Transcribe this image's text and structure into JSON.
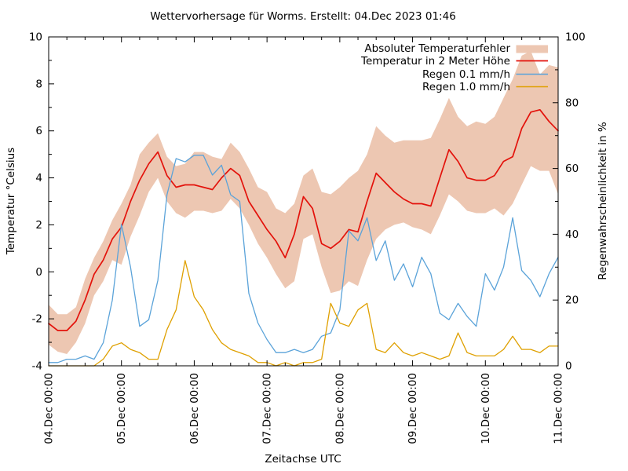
{
  "title": "Wettervorhersage für Worms. Erstellt: 04.Dec 2023 01:46",
  "colors": {
    "background": "#ffffff",
    "axis": "#000000",
    "error_band": "#edc7b2",
    "temperature": "#e3120b",
    "rain_01": "#5ba3d9",
    "rain_10": "#dfa000"
  },
  "axes": {
    "x": {
      "label": "Zeitachse UTC",
      "ticks": [
        "04.Dec 00:00",
        "05.Dec 00:00",
        "06.Dec 00:00",
        "07.Dec 00:00",
        "08.Dec 00:00",
        "09.Dec 00:00",
        "10.Dec 00:00",
        "11.Dec 00:00"
      ],
      "minor_ticks_hours": 6
    },
    "y_left": {
      "label": "Temperatur °Celsius",
      "min": -4,
      "max": 10,
      "ticks": [
        10,
        8,
        6,
        4,
        2,
        0,
        -2,
        -4
      ],
      "minor_step": 1
    },
    "y_right": {
      "label": "Regenwahrscheinlichkeit in %",
      "min": 0,
      "max": 100,
      "ticks": [
        100,
        80,
        60,
        40,
        20,
        0
      ],
      "minor_step": 10
    }
  },
  "legend": {
    "items": [
      {
        "label": "Absoluter Temperaturfehler",
        "swatch": "band",
        "color_key": "error_band"
      },
      {
        "label": "Temperatur in 2 Meter Höhe",
        "swatch": "line",
        "color_key": "temperature"
      },
      {
        "label": "Regen 0.1 mm/h",
        "swatch": "line",
        "color_key": "rain_01"
      },
      {
        "label": "Regen 1.0 mm/h",
        "swatch": "line",
        "color_key": "rain_10"
      }
    ]
  },
  "chart_data": {
    "type": "line",
    "title": "Wettervorhersage für Worms. Erstellt: 04.Dec 2023 01:46",
    "xlabel": "Zeitachse UTC",
    "ylabel_left": "Temperatur °Celsius",
    "ylabel_right": "Regenwahrscheinlichkeit in %",
    "x_unit": "hours since 04.Dec 2023 00:00 UTC",
    "x_range_hours": [
      0,
      168
    ],
    "ylim_left": [
      -4,
      10
    ],
    "ylim_right": [
      0,
      100
    ],
    "grid": false,
    "legend_position": "top-right",
    "x_hours": [
      0,
      3,
      6,
      9,
      12,
      15,
      18,
      21,
      24,
      27,
      30,
      33,
      36,
      39,
      42,
      45,
      48,
      51,
      54,
      57,
      60,
      63,
      66,
      69,
      72,
      75,
      78,
      81,
      84,
      87,
      90,
      93,
      96,
      99,
      102,
      105,
      108,
      111,
      114,
      117,
      120,
      123,
      126,
      129,
      132,
      135,
      138,
      141,
      144,
      147,
      150,
      153,
      156,
      159,
      162,
      165,
      168
    ],
    "series": [
      {
        "name": "Absoluter Temperaturfehler",
        "type": "band",
        "axis": "left",
        "upper": [
          -1.4,
          -1.8,
          -1.8,
          -1.5,
          -0.3,
          0.6,
          1.3,
          2.2,
          2.9,
          3.7,
          5.0,
          5.5,
          5.9,
          4.9,
          4.5,
          4.6,
          5.1,
          5.1,
          4.9,
          4.8,
          5.5,
          5.1,
          4.4,
          3.6,
          3.4,
          2.7,
          2.5,
          2.9,
          4.1,
          4.4,
          3.4,
          3.3,
          3.6,
          4.0,
          4.3,
          5.0,
          6.2,
          5.8,
          5.5,
          5.6,
          5.6,
          5.6,
          5.7,
          6.5,
          7.4,
          6.6,
          6.2,
          6.4,
          6.3,
          6.6,
          7.4,
          8.2,
          9.2,
          9.4,
          8.4,
          8.8,
          8.7
        ],
        "lower": [
          -3.1,
          -3.4,
          -3.5,
          -3.0,
          -2.2,
          -1.0,
          -0.4,
          0.5,
          0.3,
          1.5,
          2.4,
          3.4,
          4.0,
          3.0,
          2.5,
          2.3,
          2.6,
          2.6,
          2.5,
          2.6,
          3.1,
          2.7,
          2.0,
          1.2,
          0.6,
          -0.1,
          -0.7,
          -0.4,
          1.4,
          1.6,
          0.2,
          -0.9,
          -0.8,
          -0.4,
          -0.6,
          0.5,
          1.4,
          1.8,
          2.0,
          2.1,
          1.9,
          1.8,
          1.6,
          2.4,
          3.3,
          3.0,
          2.6,
          2.5,
          2.5,
          2.7,
          2.4,
          2.9,
          3.7,
          4.5,
          4.3,
          4.3,
          3.3
        ]
      },
      {
        "name": "Temperatur in 2 Meter Höhe",
        "type": "line",
        "axis": "left",
        "values": [
          -2.2,
          -2.5,
          -2.5,
          -2.1,
          -1.2,
          -0.1,
          0.5,
          1.4,
          1.9,
          3.0,
          3.9,
          4.6,
          5.1,
          4.1,
          3.6,
          3.7,
          3.7,
          3.6,
          3.5,
          4.0,
          4.4,
          4.1,
          3.0,
          2.4,
          1.8,
          1.3,
          0.6,
          1.6,
          3.2,
          2.7,
          1.2,
          1.0,
          1.3,
          1.8,
          1.7,
          3.0,
          4.2,
          3.8,
          3.4,
          3.1,
          2.9,
          2.9,
          2.8,
          4.0,
          5.2,
          4.7,
          4.0,
          3.9,
          3.9,
          4.1,
          4.7,
          4.9,
          6.1,
          6.8,
          6.9,
          6.4,
          6.0
        ]
      },
      {
        "name": "Regen 0.1 mm/h",
        "type": "line",
        "axis": "right",
        "values": [
          1,
          1,
          2,
          2,
          3,
          2,
          7,
          20,
          43,
          30,
          12,
          14,
          26,
          52,
          63,
          62,
          64,
          64,
          58,
          61,
          52,
          50,
          22,
          13,
          8,
          4,
          4,
          5,
          4,
          5,
          9,
          10,
          17,
          41,
          38,
          45,
          32,
          38,
          26,
          31,
          24,
          33,
          28,
          16,
          14,
          19,
          15,
          12,
          28,
          23,
          30,
          45,
          29,
          26,
          21,
          28,
          33
        ]
      },
      {
        "name": "Regen 1.0 mm/h",
        "type": "line",
        "axis": "right",
        "values": [
          0,
          0,
          0,
          0,
          0,
          0,
          2,
          6,
          7,
          5,
          4,
          2,
          2,
          11,
          17,
          32,
          21,
          17,
          11,
          7,
          5,
          4,
          3,
          1,
          1,
          0,
          1,
          0,
          1,
          1,
          2,
          19,
          13,
          12,
          17,
          19,
          5,
          4,
          7,
          4,
          3,
          4,
          3,
          2,
          3,
          10,
          4,
          3,
          3,
          3,
          5,
          9,
          5,
          5,
          4,
          6,
          6
        ]
      }
    ]
  }
}
